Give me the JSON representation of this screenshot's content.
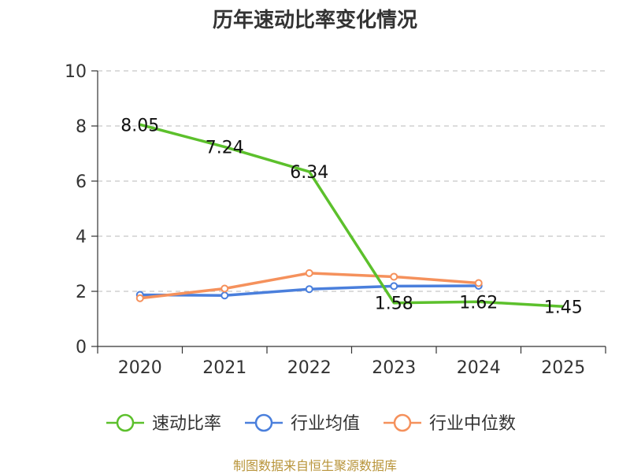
{
  "chart_data": {
    "type": "line",
    "title": "历年速动比率变化情况",
    "categories": [
      "2020",
      "2021",
      "2022",
      "2023",
      "2024",
      "2025"
    ],
    "ylim": [
      0,
      10
    ],
    "yticks": [
      0,
      2,
      4,
      6,
      8,
      10
    ],
    "grid": true,
    "legend_position": "bottom",
    "series": [
      {
        "name": "速动比率",
        "color": "#5cc02c",
        "values": [
          8.05,
          7.24,
          6.34,
          1.58,
          1.62,
          1.45
        ],
        "labels": [
          "8.05",
          "7.24",
          "6.34",
          "1.58",
          "1.62",
          "1.45"
        ],
        "show_labels": true,
        "markers": false
      },
      {
        "name": "行业均值",
        "color": "#4a7fdc",
        "values": [
          1.87,
          1.85,
          2.08,
          2.19,
          2.2,
          null
        ],
        "show_labels": false,
        "markers": true
      },
      {
        "name": "行业中位数",
        "color": "#f5915c",
        "values": [
          1.75,
          2.1,
          2.66,
          2.53,
          2.3,
          null
        ],
        "show_labels": false,
        "markers": true
      }
    ]
  },
  "footer": {
    "source": "制图数据来自恒生聚源数据库"
  }
}
